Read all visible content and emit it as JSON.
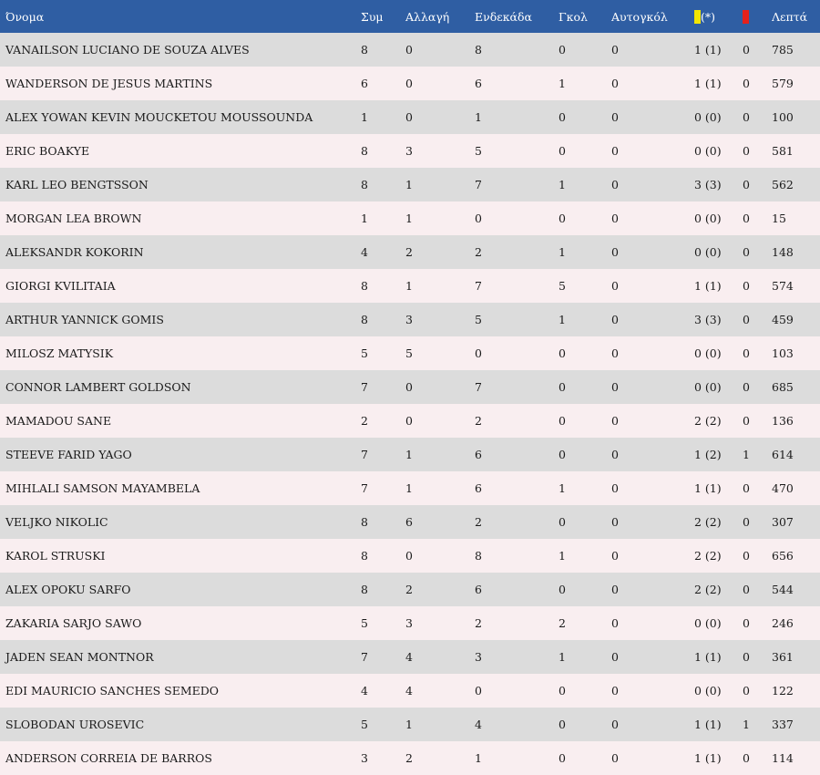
{
  "colors": {
    "header_bg": "#2f5ea3",
    "yellow_card": "#f3e600",
    "red_card": "#e5211c"
  },
  "headers": {
    "name": "Όνομα",
    "apps": "Συμ",
    "subs": "Αλλαγή",
    "starts": "Ενδεκάδα",
    "goals": "Γκολ",
    "own_goals": "Αυτογκόλ",
    "yellow_suffix": "(*)",
    "minutes": "Λεπτά"
  },
  "players": [
    {
      "name": "VANAILSON LUCIANO DE SOUZA ALVES",
      "apps": "8",
      "subs": "0",
      "starts": "8",
      "goals": "0",
      "own_goals": "0",
      "yellow": "1 (1)",
      "red": "0",
      "minutes": "785"
    },
    {
      "name": "WANDERSON DE JESUS MARTINS",
      "apps": "6",
      "subs": "0",
      "starts": "6",
      "goals": "1",
      "own_goals": "0",
      "yellow": "1 (1)",
      "red": "0",
      "minutes": "579"
    },
    {
      "name": "ALEX YOWAN KEVIN MOUCKETOU MOUSSOUNDA",
      "apps": "1",
      "subs": "0",
      "starts": "1",
      "goals": "0",
      "own_goals": "0",
      "yellow": "0 (0)",
      "red": "0",
      "minutes": "100"
    },
    {
      "name": "ERIC BOAKYE",
      "apps": "8",
      "subs": "3",
      "starts": "5",
      "goals": "0",
      "own_goals": "0",
      "yellow": "0 (0)",
      "red": "0",
      "minutes": "581"
    },
    {
      "name": "KARL LEO BENGTSSON",
      "apps": "8",
      "subs": "1",
      "starts": "7",
      "goals": "1",
      "own_goals": "0",
      "yellow": "3 (3)",
      "red": "0",
      "minutes": "562"
    },
    {
      "name": "MORGAN LEA BROWN",
      "apps": "1",
      "subs": "1",
      "starts": "0",
      "goals": "0",
      "own_goals": "0",
      "yellow": "0 (0)",
      "red": "0",
      "minutes": "15"
    },
    {
      "name": "ALEKSANDR KOKORIN",
      "apps": "4",
      "subs": "2",
      "starts": "2",
      "goals": "1",
      "own_goals": "0",
      "yellow": "0 (0)",
      "red": "0",
      "minutes": "148"
    },
    {
      "name": "GIORGI KVILITAIA",
      "apps": "8",
      "subs": "1",
      "starts": "7",
      "goals": "5",
      "own_goals": "0",
      "yellow": "1 (1)",
      "red": "0",
      "minutes": "574"
    },
    {
      "name": "ARTHUR YANNICK GOMIS",
      "apps": "8",
      "subs": "3",
      "starts": "5",
      "goals": "1",
      "own_goals": "0",
      "yellow": "3 (3)",
      "red": "0",
      "minutes": "459"
    },
    {
      "name": "MILOSZ MATYSIK",
      "apps": "5",
      "subs": "5",
      "starts": "0",
      "goals": "0",
      "own_goals": "0",
      "yellow": "0 (0)",
      "red": "0",
      "minutes": "103"
    },
    {
      "name": "CONNOR LAMBERT GOLDSON",
      "apps": "7",
      "subs": "0",
      "starts": "7",
      "goals": "0",
      "own_goals": "0",
      "yellow": "0 (0)",
      "red": "0",
      "minutes": "685"
    },
    {
      "name": "MAMADOU SANE",
      "apps": "2",
      "subs": "0",
      "starts": "2",
      "goals": "0",
      "own_goals": "0",
      "yellow": "2 (2)",
      "red": "0",
      "minutes": "136"
    },
    {
      "name": "STEEVE FARID YAGO",
      "apps": "7",
      "subs": "1",
      "starts": "6",
      "goals": "0",
      "own_goals": "0",
      "yellow": "1 (2)",
      "red": "1",
      "minutes": "614"
    },
    {
      "name": "MIHLALI SAMSON MAYAMBELA",
      "apps": "7",
      "subs": "1",
      "starts": "6",
      "goals": "1",
      "own_goals": "0",
      "yellow": "1 (1)",
      "red": "0",
      "minutes": "470"
    },
    {
      "name": "VELJKO NIKOLIC",
      "apps": "8",
      "subs": "6",
      "starts": "2",
      "goals": "0",
      "own_goals": "0",
      "yellow": "2 (2)",
      "red": "0",
      "minutes": "307"
    },
    {
      "name": "KAROL STRUSKI",
      "apps": "8",
      "subs": "0",
      "starts": "8",
      "goals": "1",
      "own_goals": "0",
      "yellow": "2 (2)",
      "red": "0",
      "minutes": "656"
    },
    {
      "name": "ALEX OPOKU SARFO",
      "apps": "8",
      "subs": "2",
      "starts": "6",
      "goals": "0",
      "own_goals": "0",
      "yellow": "2 (2)",
      "red": "0",
      "minutes": "544"
    },
    {
      "name": "ZAKARIA SARJO SAWO",
      "apps": "5",
      "subs": "3",
      "starts": "2",
      "goals": "2",
      "own_goals": "0",
      "yellow": "0 (0)",
      "red": "0",
      "minutes": "246"
    },
    {
      "name": "JADEN SEAN MONTNOR",
      "apps": "7",
      "subs": "4",
      "starts": "3",
      "goals": "1",
      "own_goals": "0",
      "yellow": "1 (1)",
      "red": "0",
      "minutes": "361"
    },
    {
      "name": "EDI MAURICIO SANCHES SEMEDO",
      "apps": "4",
      "subs": "4",
      "starts": "0",
      "goals": "0",
      "own_goals": "0",
      "yellow": "0 (0)",
      "red": "0",
      "minutes": "122"
    },
    {
      "name": "SLOBODAN UROSEVIC",
      "apps": "5",
      "subs": "1",
      "starts": "4",
      "goals": "0",
      "own_goals": "0",
      "yellow": "1 (1)",
      "red": "1",
      "minutes": "337"
    },
    {
      "name": "ANDERSON CORREIA DE BARROS",
      "apps": "3",
      "subs": "2",
      "starts": "1",
      "goals": "0",
      "own_goals": "0",
      "yellow": "1 (1)",
      "red": "0",
      "minutes": "114"
    }
  ]
}
